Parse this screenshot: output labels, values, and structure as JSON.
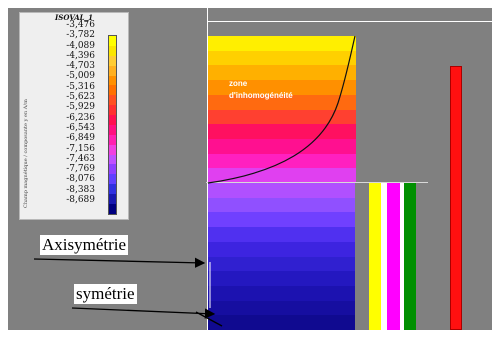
{
  "legend": {
    "title": "ISOVAL_1",
    "vertical_label": "Champ magnétique / composante y en A/m",
    "values": [
      "-3,476",
      "-3,782",
      "-4,089",
      "-4,396",
      "-4,703",
      "-5,009",
      "-5,316",
      "-5,623",
      "-5,929",
      "-6,236",
      "-6,543",
      "-6,849",
      "-7,156",
      "-7,463",
      "-7,769",
      "-8,076",
      "-8,383",
      "-8,689"
    ],
    "colors": [
      "#ffff00",
      "#fbe600",
      "#ffcc33",
      "#ffb020",
      "#ff9000",
      "#ff7000",
      "#ff5020",
      "#ff3030",
      "#ff1050",
      "#ff1080",
      "#ff20b0",
      "#f040e0",
      "#c050ff",
      "#9040ff",
      "#6040ff",
      "#3030e0",
      "#1818b0",
      "#000080"
    ]
  },
  "labels": {
    "zone_line1": "zone",
    "zone_line2": "d'inhomogénéité",
    "axisymetrie": "Axisymétrie",
    "symetrie": "symétrie"
  },
  "bars": {
    "block_colors": [
      "#808080",
      "#ffff00",
      "#ffffff",
      "#ff00ff",
      "#ffffff",
      "#009000",
      "#808080"
    ],
    "red_bar_color": "#ff1010"
  }
}
